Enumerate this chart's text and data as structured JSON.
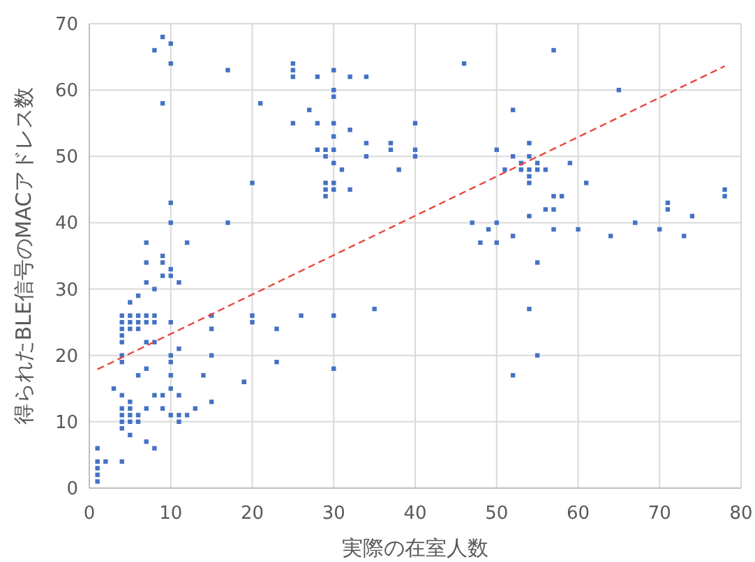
{
  "chart_data": {
    "type": "scatter",
    "xlabel": "実際の在室人数",
    "ylabel": "得られたBLE信号のMACアドレス数",
    "xlim": [
      0,
      80
    ],
    "xticks": [
      0,
      10,
      20,
      30,
      40,
      50,
      60,
      70,
      80
    ],
    "ylim": [
      0,
      70
    ],
    "yticks": [
      0,
      10,
      20,
      30,
      40,
      50,
      60,
      70
    ],
    "grid": true,
    "marker": "square",
    "series": [
      {
        "color": "#4472c4",
        "x": [
          9,
          10,
          8,
          10,
          17,
          9,
          20,
          10,
          10,
          17,
          7,
          12,
          9,
          7,
          9,
          10,
          9,
          10,
          7,
          11,
          8,
          6,
          5,
          4,
          5,
          6,
          7,
          8,
          15,
          20,
          4,
          5,
          6,
          7,
          8,
          10,
          20,
          4,
          5,
          6,
          15,
          4,
          4,
          7,
          8,
          11,
          4,
          10,
          15,
          4,
          10,
          7,
          10,
          6,
          14,
          3,
          10,
          4,
          8,
          9,
          11,
          19,
          5,
          15,
          4,
          5,
          7,
          9,
          13,
          4,
          5,
          6,
          10,
          11,
          12,
          4,
          5,
          6,
          11,
          4,
          5,
          7,
          8,
          1,
          1,
          2,
          4,
          1,
          1,
          1,
          25,
          25,
          25,
          28,
          30,
          32,
          34,
          46,
          30,
          30,
          21,
          27,
          25,
          28,
          30,
          40,
          30,
          32,
          28,
          29,
          30,
          29,
          34,
          34,
          37,
          37,
          40,
          40,
          30,
          31,
          38,
          29,
          30,
          29,
          30,
          32,
          29,
          47,
          48,
          23,
          26,
          30,
          35,
          23,
          30,
          19,
          57,
          65,
          52,
          50,
          54,
          52,
          54,
          53,
          55,
          59,
          51,
          53,
          54,
          55,
          56,
          54,
          54,
          61,
          57,
          58,
          56,
          57,
          54,
          50,
          49,
          57,
          60,
          52,
          64,
          67,
          70,
          73,
          71,
          71,
          74,
          78,
          78,
          50,
          55,
          54,
          55,
          52
        ],
        "values": [
          68,
          67,
          66,
          64,
          63,
          58,
          46,
          43,
          40,
          40,
          37,
          37,
          35,
          34,
          34,
          33,
          32,
          32,
          31,
          31,
          30,
          29,
          28,
          26,
          26,
          26,
          26,
          26,
          26,
          26,
          25,
          25,
          25,
          25,
          25,
          25,
          25,
          24,
          24,
          24,
          24,
          23,
          22,
          22,
          22,
          21,
          20,
          20,
          20,
          19,
          19,
          18,
          17,
          17,
          17,
          15,
          15,
          14,
          14,
          14,
          14,
          16,
          13,
          13,
          12,
          12,
          12,
          12,
          12,
          11,
          11,
          11,
          11,
          11,
          11,
          10,
          10,
          10,
          10,
          9,
          8,
          7,
          6,
          6,
          4,
          4,
          4,
          3,
          2,
          1,
          64,
          63,
          62,
          62,
          63,
          62,
          62,
          64,
          60,
          59,
          58,
          57,
          55,
          55,
          55,
          55,
          53,
          54,
          51,
          51,
          51,
          50,
          52,
          50,
          52,
          51,
          51,
          50,
          49,
          48,
          48,
          46,
          46,
          45,
          45,
          45,
          44,
          40,
          37,
          24,
          26,
          26,
          27,
          19,
          18,
          16,
          66,
          60,
          57,
          51,
          52,
          50,
          50,
          49,
          49,
          49,
          48,
          48,
          48,
          48,
          48,
          47,
          46,
          46,
          44,
          44,
          42,
          42,
          41,
          40,
          39,
          39,
          39,
          38,
          38,
          40,
          39,
          38,
          43,
          42,
          41,
          45,
          44,
          37,
          34,
          27,
          20,
          17
        ]
      },
      {
        "type": "line",
        "color": "#e8473f",
        "line_style": "dashed",
        "marker": "none",
        "x": [
          1,
          78
        ],
        "values": [
          17.9,
          63.6
        ]
      }
    ]
  }
}
